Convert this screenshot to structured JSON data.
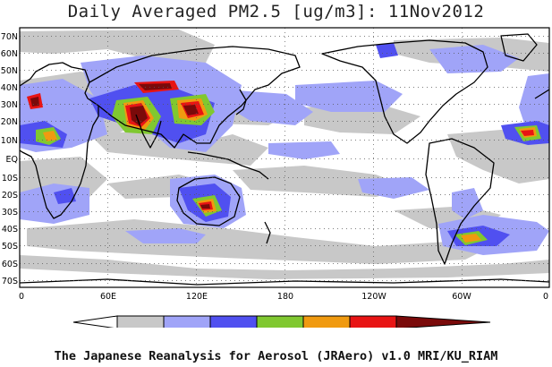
{
  "title": "Daily Averaged PM2.5 [ug/m3]: 11Nov2012",
  "credit": "The Japanese Reanalysis for Aerosol (JRAero) v1.0 MRI/KU_RIAM",
  "lat_labels": [
    "70N",
    "60N",
    "50N",
    "40N",
    "30N",
    "20N",
    "10N",
    "EQ",
    "10S",
    "20S",
    "30S",
    "40S",
    "50S",
    "60S",
    "70S"
  ],
  "lon_labels": [
    "0",
    "60E",
    "120E",
    "180",
    "120W",
    "60W",
    "0"
  ],
  "colorbar": {
    "ticks": [
      "0",
      "5",
      "10",
      "20",
      "35",
      "50",
      "65",
      "80"
    ],
    "colors": [
      "#ffffff",
      "#c8c8c8",
      "#a0a4f8",
      "#5050f0",
      "#80c830",
      "#f09a10",
      "#e81414",
      "#7a0a0a"
    ]
  },
  "legend_bins": [
    {
      "range": "0-5",
      "color": "#ffffff"
    },
    {
      "range": "5-10",
      "color": "#c8c8c8"
    },
    {
      "range": "10-20",
      "color": "#a0a4f8"
    },
    {
      "range": "20-35",
      "color": "#5050f0"
    },
    {
      "range": "35-50",
      "color": "#80c830"
    },
    {
      "range": "50-65",
      "color": "#f09a10"
    },
    {
      "range": "65-80",
      "color": "#e81414"
    },
    {
      "range": ">80",
      "color": "#7a0a0a"
    }
  ]
}
